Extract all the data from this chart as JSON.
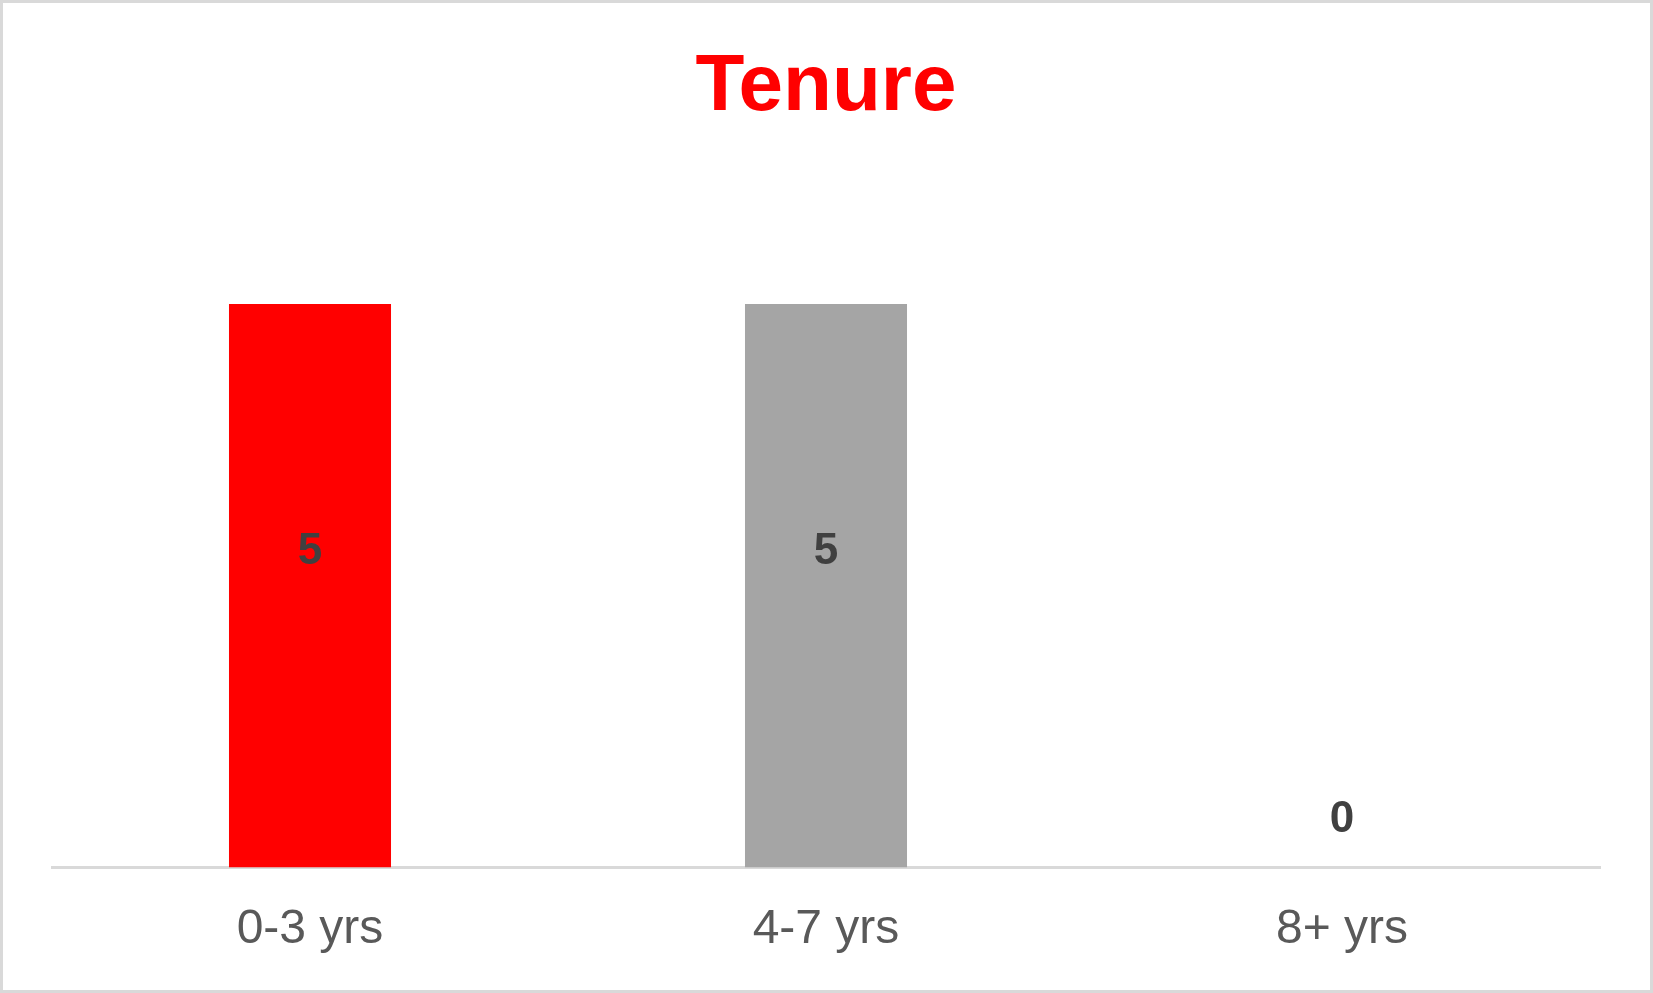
{
  "chart_data": {
    "type": "bar",
    "title": "Tenure",
    "categories": [
      "0-3 yrs",
      "4-7 yrs",
      "8+ yrs"
    ],
    "values": [
      5,
      5,
      0
    ],
    "colors": [
      "#ff0000",
      "#a5a5a5",
      "#ffc000"
    ],
    "data_labels": true,
    "grid": false,
    "legend": false
  }
}
